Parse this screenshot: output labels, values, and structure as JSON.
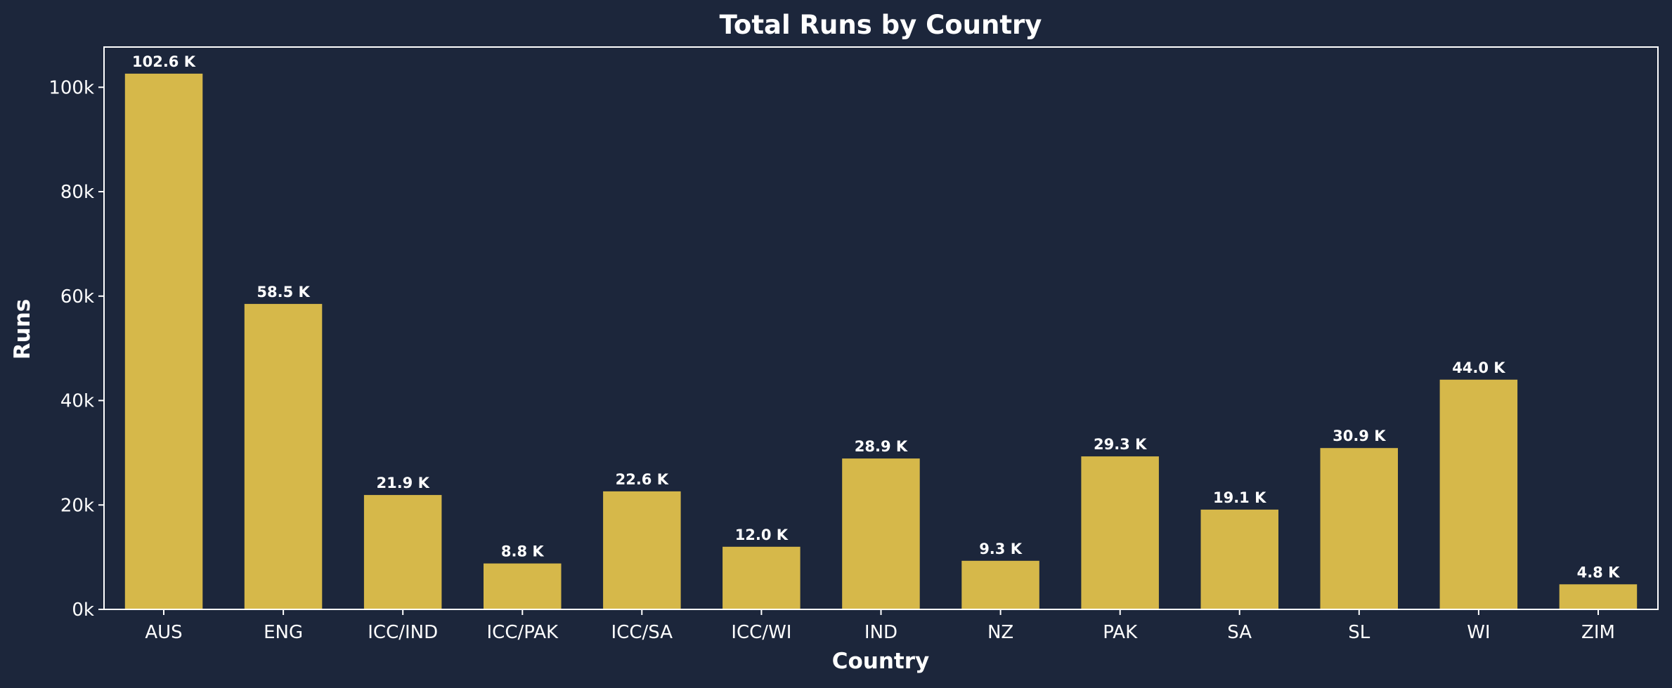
{
  "chart_data": {
    "type": "bar",
    "title": "Total Runs by Country",
    "xlabel": "Country",
    "ylabel": "Runs",
    "categories": [
      "AUS",
      "ENG",
      "ICC/IND",
      "ICC/PAK",
      "ICC/SA",
      "ICC/WI",
      "IND",
      "NZ",
      "PAK",
      "SA",
      "SL",
      "WI",
      "ZIM"
    ],
    "values": [
      102600,
      58500,
      21900,
      8800,
      22600,
      12000,
      28900,
      9300,
      29300,
      19100,
      30900,
      44000,
      4800
    ],
    "data_labels": [
      "102.6 K",
      "58.5 K",
      "21.9 K",
      "8.8 K",
      "22.6 K",
      "12.0 K",
      "28.9 K",
      "9.3 K",
      "29.3 K",
      "19.1 K",
      "30.9 K",
      "44.0 K",
      "4.8 K"
    ],
    "ylim": [
      0,
      107700
    ],
    "yticks": [
      0,
      20000,
      40000,
      60000,
      80000,
      100000
    ],
    "ytick_labels": [
      "0k",
      "20k",
      "40k",
      "60k",
      "80k",
      "100k"
    ],
    "grid": false,
    "colors": {
      "background": "#1c263b",
      "bar": "#d6b84a",
      "text": "#ffffff",
      "axis": "#ffffff"
    }
  }
}
